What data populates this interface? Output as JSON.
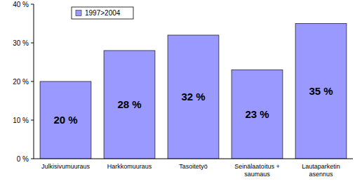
{
  "chart_data": {
    "type": "bar",
    "categories": [
      "Julkisivumuuraus",
      "Harkkomuuraus",
      "Tasoitetyö",
      "Seinälaatoitus + saumaus",
      "Lautaparketin asennus"
    ],
    "series": [
      {
        "name": "1997>2004",
        "color": "#9999ff",
        "values": [
          20,
          28,
          32,
          23,
          35
        ],
        "value_labels": [
          "20 %",
          "28 %",
          "32 %",
          "23 %",
          "35 %"
        ]
      }
    ],
    "ylim": [
      0,
      40
    ],
    "yticks": [
      {
        "value": 0,
        "label": "0 %"
      },
      {
        "value": 10,
        "label": "10 %"
      },
      {
        "value": 20,
        "label": "20 %"
      },
      {
        "value": 30,
        "label": "30 %"
      },
      {
        "value": 40,
        "label": "40 %"
      }
    ],
    "grid": false,
    "legend": "upper left",
    "data_labels": true
  }
}
